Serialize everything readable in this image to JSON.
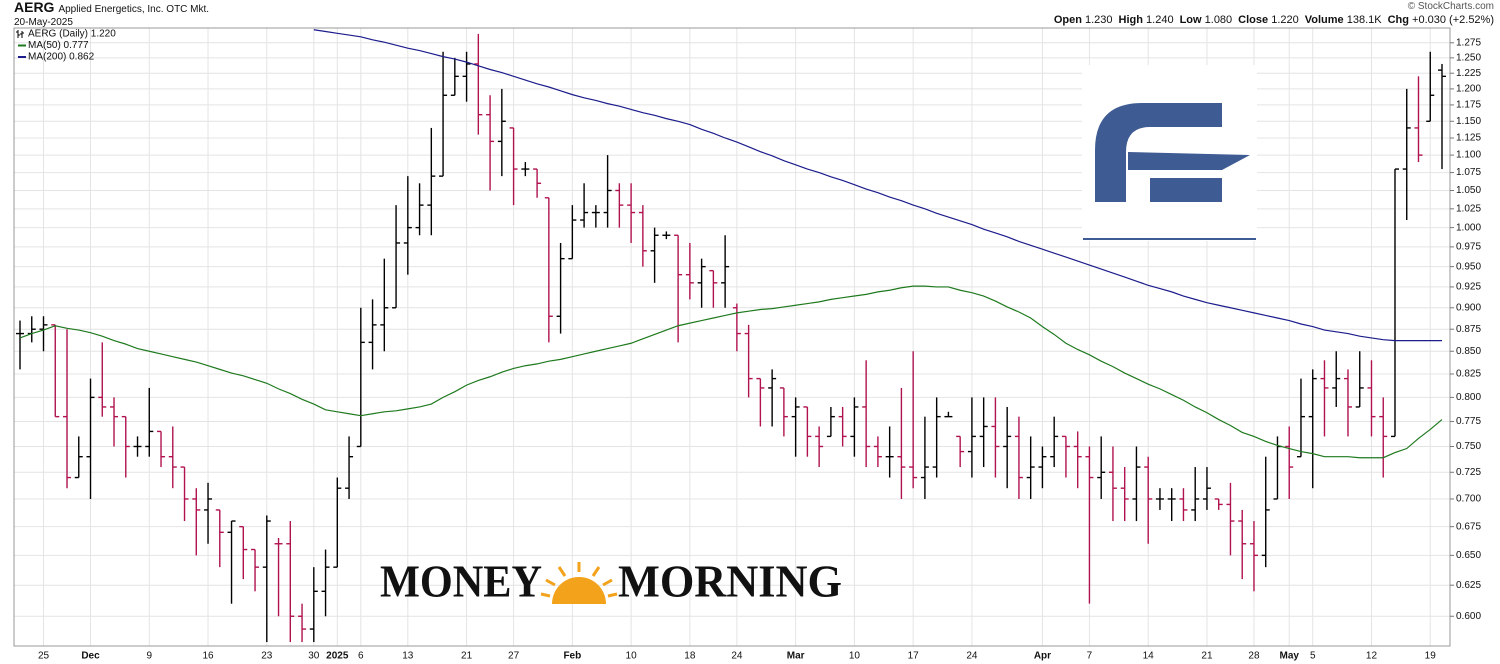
{
  "header": {
    "symbol": "AERG",
    "company": "Applied Energetics, Inc.  OTC Mkt.",
    "date": "20-May-2025",
    "credit": "© StockCharts.com",
    "quote": [
      {
        "label": "Open",
        "value": "1.230"
      },
      {
        "label": "High",
        "value": "1.240"
      },
      {
        "label": "Low",
        "value": "1.080"
      },
      {
        "label": "Close",
        "value": "1.220"
      },
      {
        "label": "Volume",
        "value": "138.1K"
      },
      {
        "label": "Chg",
        "value": "+0.030 (+2.52%)"
      }
    ]
  },
  "overlay": {
    "words": [
      "MONEY",
      "MORNING"
    ]
  },
  "chart_data": {
    "type": "ohlc",
    "name": "AERG (Daily) 1.220",
    "up_color": "#000000",
    "down_color": "#b0124f",
    "categories": [
      null,
      null,
      "25",
      null,
      null,
      null,
      "Dec",
      null,
      null,
      null,
      null,
      "9",
      null,
      null,
      null,
      null,
      "16",
      null,
      null,
      null,
      null,
      "23",
      null,
      null,
      null,
      "30",
      null,
      "2025",
      null,
      "6",
      null,
      null,
      null,
      "13",
      null,
      null,
      null,
      null,
      "21",
      null,
      null,
      null,
      "27",
      null,
      null,
      null,
      null,
      "Feb",
      null,
      null,
      null,
      null,
      "10",
      null,
      null,
      null,
      null,
      "18",
      null,
      null,
      null,
      "24",
      null,
      null,
      null,
      null,
      "Mar",
      null,
      null,
      null,
      null,
      "10",
      null,
      null,
      null,
      null,
      "17",
      null,
      null,
      null,
      null,
      "24",
      null,
      null,
      null,
      null,
      null,
      "Apr",
      null,
      null,
      null,
      "7",
      null,
      null,
      null,
      null,
      "14",
      null,
      null,
      null,
      null,
      "21",
      null,
      null,
      null,
      "28",
      null,
      null,
      "May",
      null,
      "5",
      null,
      null,
      null,
      null,
      "12",
      null,
      null,
      null,
      null,
      "19",
      null
    ],
    "open": [
      0.87,
      0.87,
      0.875,
      0.88,
      0.78,
      0.72,
      0.74,
      0.8,
      0.79,
      0.78,
      0.75,
      0.75,
      0.765,
      0.74,
      0.73,
      0.7,
      0.69,
      0.69,
      0.67,
      0.675,
      0.655,
      0.64,
      0.66,
      0.66,
      0.6,
      0.59,
      0.62,
      0.64,
      0.71,
      0.75,
      0.86,
      0.88,
      0.9,
      0.98,
      1.0,
      1.03,
      1.07,
      1.19,
      1.22,
      1.24,
      1.16,
      1.12,
      1.14,
      1.08,
      1.08,
      1.04,
      0.89,
      0.96,
      1.01,
      1.02,
      1.02,
      1.05,
      1.03,
      1.02,
      0.97,
      0.99,
      0.99,
      0.94,
      0.93,
      0.945,
      0.93,
      0.9,
      0.87,
      0.82,
      0.81,
      0.81,
      0.78,
      0.79,
      0.76,
      0.76,
      0.78,
      0.76,
      0.79,
      0.75,
      0.74,
      0.74,
      0.73,
      0.72,
      0.73,
      0.78,
      0.76,
      0.745,
      0.76,
      0.77,
      0.75,
      0.76,
      0.72,
      0.73,
      0.74,
      0.76,
      0.75,
      0.74,
      0.72,
      0.725,
      0.71,
      0.7,
      0.73,
      0.7,
      0.7,
      0.7,
      0.69,
      0.7,
      0.7,
      0.695,
      0.68,
      0.66,
      0.65,
      0.7,
      0.75,
      0.74,
      0.78,
      0.82,
      0.81,
      0.82,
      0.79,
      0.81,
      0.78,
      0.76,
      1.08,
      1.14,
      1.15,
      1.23
    ],
    "high": [
      0.885,
      0.89,
      0.89,
      0.88,
      0.875,
      0.76,
      0.82,
      0.86,
      0.8,
      0.78,
      0.76,
      0.81,
      0.765,
      0.77,
      0.73,
      0.71,
      0.715,
      0.69,
      0.68,
      0.675,
      0.655,
      0.685,
      0.665,
      0.68,
      0.61,
      0.64,
      0.655,
      0.72,
      0.76,
      0.9,
      0.91,
      0.96,
      1.03,
      1.07,
      1.06,
      1.14,
      1.26,
      1.25,
      1.26,
      1.29,
      1.19,
      1.2,
      1.14,
      1.09,
      1.08,
      1.04,
      0.98,
      1.03,
      1.06,
      1.03,
      1.1,
      1.06,
      1.06,
      1.03,
      1.0,
      0.995,
      0.99,
      0.98,
      0.96,
      0.945,
      0.99,
      0.905,
      0.88,
      0.82,
      0.83,
      0.81,
      0.8,
      0.79,
      0.77,
      0.79,
      0.79,
      0.8,
      0.84,
      0.76,
      0.77,
      0.81,
      0.85,
      0.78,
      0.8,
      0.785,
      0.76,
      0.8,
      0.8,
      0.8,
      0.79,
      0.78,
      0.76,
      0.75,
      0.78,
      0.76,
      0.765,
      0.75,
      0.76,
      0.75,
      0.73,
      0.75,
      0.74,
      0.71,
      0.71,
      0.71,
      0.73,
      0.73,
      0.7,
      0.715,
      0.69,
      0.68,
      0.74,
      0.76,
      0.77,
      0.82,
      0.83,
      0.84,
      0.85,
      0.83,
      0.85,
      0.84,
      0.8,
      1.08,
      1.2,
      1.22,
      1.26,
      1.24
    ],
    "low": [
      0.83,
      0.86,
      0.85,
      0.78,
      0.71,
      0.72,
      0.7,
      0.78,
      0.75,
      0.72,
      0.74,
      0.74,
      0.73,
      0.71,
      0.68,
      0.65,
      0.66,
      0.64,
      0.61,
      0.63,
      0.62,
      0.58,
      0.6,
      0.58,
      0.58,
      0.58,
      0.6,
      0.64,
      0.7,
      0.75,
      0.83,
      0.85,
      0.9,
      0.94,
      0.99,
      0.99,
      1.07,
      1.19,
      1.18,
      1.13,
      1.05,
      1.07,
      1.03,
      1.07,
      1.04,
      0.86,
      0.87,
      0.96,
      1.0,
      1.0,
      1.0,
      1.0,
      0.98,
      0.95,
      0.93,
      0.985,
      0.86,
      0.91,
      0.9,
      0.9,
      0.9,
      0.85,
      0.8,
      0.77,
      0.77,
      0.76,
      0.74,
      0.74,
      0.73,
      0.76,
      0.75,
      0.74,
      0.73,
      0.73,
      0.72,
      0.7,
      0.71,
      0.7,
      0.72,
      0.78,
      0.73,
      0.72,
      0.73,
      0.72,
      0.71,
      0.7,
      0.7,
      0.71,
      0.73,
      0.72,
      0.71,
      0.61,
      0.7,
      0.68,
      0.68,
      0.68,
      0.66,
      0.69,
      0.68,
      0.68,
      0.68,
      0.69,
      0.69,
      0.65,
      0.63,
      0.62,
      0.64,
      0.7,
      0.7,
      0.74,
      0.71,
      0.76,
      0.79,
      0.76,
      0.79,
      0.76,
      0.72,
      0.76,
      1.01,
      1.09,
      1.15,
      1.08
    ],
    "close": [
      0.87,
      0.875,
      0.88,
      0.78,
      0.72,
      0.74,
      0.8,
      0.79,
      0.78,
      0.75,
      0.75,
      0.765,
      0.74,
      0.73,
      0.7,
      0.69,
      0.7,
      0.67,
      0.68,
      0.655,
      0.64,
      0.68,
      0.66,
      0.6,
      0.59,
      0.62,
      0.64,
      0.71,
      0.74,
      0.86,
      0.88,
      0.9,
      0.98,
      1.0,
      1.03,
      1.07,
      1.19,
      1.22,
      1.24,
      1.16,
      1.12,
      1.15,
      1.08,
      1.08,
      1.06,
      0.89,
      0.96,
      1.01,
      1.02,
      1.02,
      1.05,
      1.03,
      1.02,
      0.97,
      0.99,
      0.99,
      0.94,
      0.93,
      0.95,
      0.93,
      0.95,
      0.87,
      0.82,
      0.81,
      0.82,
      0.78,
      0.79,
      0.76,
      0.75,
      0.78,
      0.76,
      0.79,
      0.75,
      0.74,
      0.74,
      0.73,
      0.72,
      0.73,
      0.78,
      0.78,
      0.745,
      0.76,
      0.77,
      0.75,
      0.76,
      0.72,
      0.73,
      0.74,
      0.76,
      0.75,
      0.74,
      0.72,
      0.725,
      0.71,
      0.7,
      0.73,
      0.7,
      0.7,
      0.7,
      0.69,
      0.7,
      0.71,
      0.695,
      0.68,
      0.66,
      0.65,
      0.69,
      0.75,
      0.73,
      0.78,
      0.82,
      0.81,
      0.82,
      0.79,
      0.81,
      0.78,
      0.76,
      1.08,
      1.14,
      1.1,
      1.19,
      1.22
    ],
    "series": [
      {
        "name": "MA(50) 0.777",
        "color": "#1f7a1f",
        "values": [
          0.865,
          0.87,
          0.874,
          0.879,
          0.876,
          0.874,
          0.871,
          0.867,
          0.862,
          0.858,
          0.853,
          0.85,
          0.847,
          0.844,
          0.841,
          0.838,
          0.834,
          0.83,
          0.826,
          0.823,
          0.819,
          0.815,
          0.809,
          0.804,
          0.798,
          0.793,
          0.787,
          0.785,
          0.783,
          0.781,
          0.783,
          0.785,
          0.786,
          0.788,
          0.79,
          0.793,
          0.8,
          0.806,
          0.813,
          0.818,
          0.822,
          0.827,
          0.831,
          0.834,
          0.836,
          0.839,
          0.841,
          0.844,
          0.847,
          0.85,
          0.853,
          0.856,
          0.859,
          0.864,
          0.869,
          0.874,
          0.879,
          0.882,
          0.885,
          0.888,
          0.891,
          0.894,
          0.896,
          0.898,
          0.899,
          0.901,
          0.903,
          0.905,
          0.907,
          0.91,
          0.912,
          0.914,
          0.916,
          0.919,
          0.921,
          0.924,
          0.926,
          0.926,
          0.925,
          0.925,
          0.921,
          0.918,
          0.914,
          0.908,
          0.901,
          0.895,
          0.888,
          0.878,
          0.869,
          0.859,
          0.852,
          0.846,
          0.839,
          0.833,
          0.826,
          0.82,
          0.814,
          0.809,
          0.803,
          0.797,
          0.79,
          0.784,
          0.777,
          0.771,
          0.764,
          0.76,
          0.755,
          0.751,
          0.748,
          0.745,
          0.743,
          0.74,
          0.74,
          0.74,
          0.739,
          0.739,
          0.739,
          0.744,
          0.748,
          0.758,
          0.767,
          0.777
        ]
      },
      {
        "name": "MA(200) 0.862",
        "color": "#1c1c8c",
        "values": [
          null,
          null,
          null,
          null,
          null,
          null,
          null,
          null,
          null,
          null,
          null,
          null,
          null,
          null,
          null,
          null,
          null,
          null,
          null,
          null,
          null,
          null,
          null,
          null,
          null,
          1.297,
          1.294,
          1.291,
          1.288,
          1.285,
          1.28,
          1.276,
          1.271,
          1.266,
          1.262,
          1.257,
          1.252,
          1.248,
          1.243,
          1.237,
          1.231,
          1.226,
          1.22,
          1.214,
          1.208,
          1.203,
          1.197,
          1.191,
          1.186,
          1.182,
          1.177,
          1.173,
          1.168,
          1.163,
          1.159,
          1.154,
          1.15,
          1.145,
          1.138,
          1.132,
          1.125,
          1.119,
          1.112,
          1.105,
          1.099,
          1.092,
          1.086,
          1.08,
          1.075,
          1.069,
          1.064,
          1.058,
          1.052,
          1.047,
          1.041,
          1.036,
          1.03,
          1.025,
          1.019,
          1.014,
          1.009,
          1.004,
          0.998,
          0.993,
          0.988,
          0.982,
          0.977,
          0.972,
          0.967,
          0.962,
          0.957,
          0.952,
          0.947,
          0.942,
          0.937,
          0.932,
          0.927,
          0.923,
          0.919,
          0.914,
          0.91,
          0.906,
          0.903,
          0.9,
          0.897,
          0.894,
          0.891,
          0.888,
          0.885,
          0.881,
          0.878,
          0.874,
          0.872,
          0.87,
          0.867,
          0.865,
          0.863,
          0.862,
          0.862,
          0.862,
          0.862,
          0.862
        ]
      }
    ],
    "ylim": [
      0.577,
      1.3
    ],
    "log": true,
    "grid": true,
    "legend": "upper left",
    "yticks": [
      {
        "value": 0.6,
        "label": "0.600"
      },
      0.625,
      {
        "value": 0.65,
        "label": "0.650"
      },
      0.675,
      {
        "value": 0.7,
        "label": "0.700"
      },
      0.725,
      {
        "value": 0.75,
        "label": "0.750"
      },
      0.775,
      {
        "value": 0.8,
        "label": "0.800"
      },
      0.825,
      {
        "value": 0.85,
        "label": "0.850"
      },
      0.875,
      {
        "value": 0.9,
        "label": "0.900"
      },
      0.925,
      {
        "value": 0.95,
        "label": "0.950"
      },
      0.975,
      {
        "value": 1,
        "label": "1.000"
      },
      1.025,
      {
        "value": 1.05,
        "label": "1.050"
      },
      1.075,
      {
        "value": 1.1,
        "label": "1.100"
      },
      1.125,
      {
        "value": 1.15,
        "label": "1.150"
      },
      1.175,
      {
        "value": 1.2,
        "label": "1.200"
      },
      1.225,
      {
        "value": 1.25,
        "label": "1.250"
      },
      1.275
    ]
  }
}
